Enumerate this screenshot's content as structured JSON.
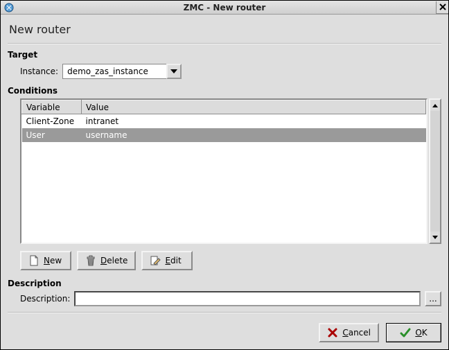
{
  "window": {
    "title": "ZMC - New router",
    "page_title": "New router"
  },
  "target": {
    "section_label": "Target",
    "instance_label": "Instance:",
    "instance_value": "demo_zas_instance"
  },
  "conditions": {
    "section_label": "Conditions",
    "columns": {
      "variable": "Variable",
      "value": "Value"
    },
    "rows": [
      {
        "variable": "Client-Zone",
        "value": "intranet",
        "selected": false
      },
      {
        "variable": "User",
        "value": "username",
        "selected": true
      }
    ],
    "buttons": {
      "new": {
        "mnemonic": "N",
        "rest": "ew"
      },
      "delete": {
        "mnemonic": "D",
        "rest": "elete"
      },
      "edit": {
        "mnemonic": "E",
        "rest": "dit"
      }
    }
  },
  "description": {
    "section_label": "Description",
    "field_label": "Description:",
    "value": "",
    "more": "..."
  },
  "dialog": {
    "cancel": {
      "mnemonic": "C",
      "rest": "ancel"
    },
    "ok": {
      "mnemonic": "O",
      "rest": "K"
    }
  },
  "style": {
    "window_bg": "#dedede",
    "selected_row_bg": "#9a9a9a",
    "selected_row_fg": "#ffffff",
    "header_bg": "#dcdcdc",
    "btn_face": "#dedede",
    "cancel_icon_color": "#aa0000",
    "ok_icon_color": "#2a8f2a"
  }
}
